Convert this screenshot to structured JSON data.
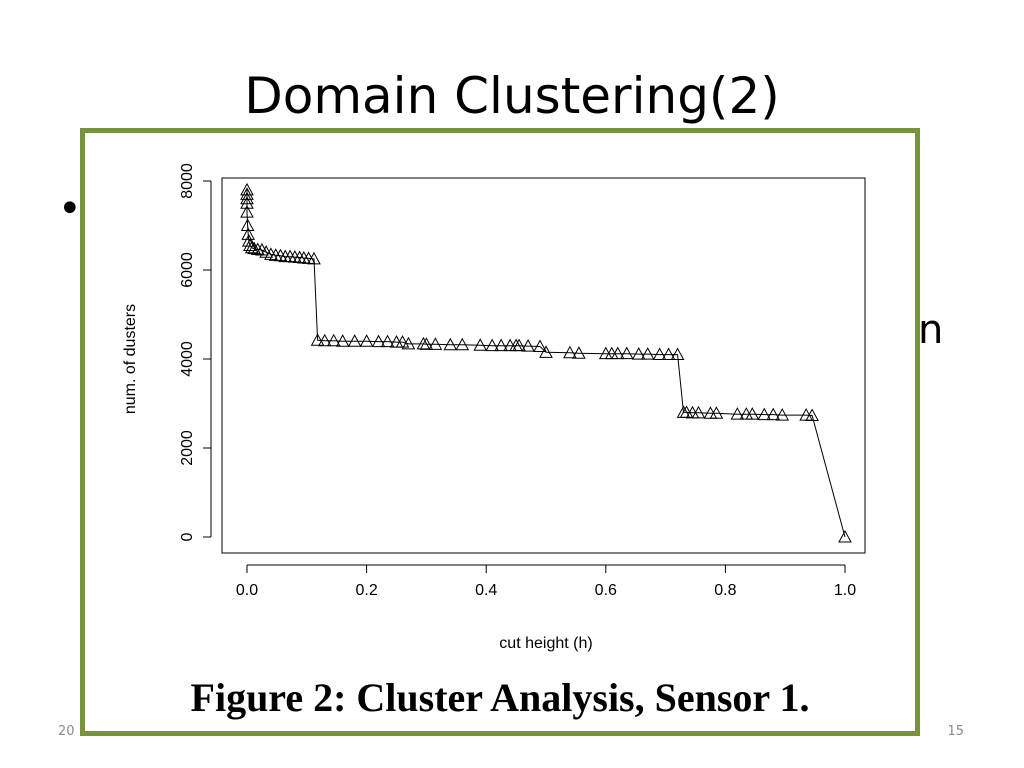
{
  "slide": {
    "title": "Domain Clustering(2)",
    "bullet_char": "•",
    "stray_text": "n",
    "footer_date": "20",
    "slide_number": "15"
  },
  "figure": {
    "caption": "Figure 2: Cluster Analysis, Sensor 1.",
    "border_color": "#77933c"
  },
  "chart_data": {
    "type": "line",
    "title": "",
    "xlabel": "cut height (h)",
    "ylabel": "num. of dusters",
    "xlim": [
      0,
      1
    ],
    "ylim": [
      0,
      8000
    ],
    "xticks": [
      "0.0",
      "0.2",
      "0.4",
      "0.6",
      "0.8",
      "1.0"
    ],
    "yticks": [
      "0",
      "2000",
      "4000",
      "6000",
      "8000"
    ],
    "marker": "triangle",
    "grid": false,
    "series": [
      {
        "x": [
          0.0,
          0.0,
          0.0,
          0.0,
          0.0,
          0.001,
          0.002,
          0.003,
          0.005,
          0.008,
          0.012,
          0.018,
          0.025,
          0.032,
          0.04,
          0.048,
          0.056,
          0.064,
          0.072,
          0.08,
          0.088,
          0.095,
          0.103,
          0.112,
          0.118,
          0.13,
          0.145,
          0.16,
          0.18,
          0.2,
          0.22,
          0.235,
          0.25,
          0.26,
          0.27,
          0.295,
          0.3,
          0.315,
          0.34,
          0.36,
          0.39,
          0.41,
          0.425,
          0.44,
          0.45,
          0.455,
          0.47,
          0.49,
          0.5,
          0.54,
          0.555,
          0.6,
          0.61,
          0.62,
          0.635,
          0.655,
          0.67,
          0.69,
          0.705,
          0.72,
          0.73,
          0.735,
          0.745,
          0.755,
          0.775,
          0.785,
          0.82,
          0.835,
          0.845,
          0.865,
          0.88,
          0.895,
          0.935,
          0.945,
          1.0
        ],
        "y": [
          7800,
          7700,
          7600,
          7500,
          7300,
          7000,
          6800,
          6650,
          6550,
          6500,
          6480,
          6460,
          6450,
          6400,
          6350,
          6330,
          6320,
          6300,
          6300,
          6290,
          6280,
          6270,
          6260,
          6250,
          4420,
          4410,
          4410,
          4400,
          4400,
          4400,
          4390,
          4390,
          4380,
          4380,
          4340,
          4340,
          4330,
          4330,
          4320,
          4320,
          4310,
          4300,
          4300,
          4300,
          4300,
          4300,
          4290,
          4280,
          4150,
          4140,
          4130,
          4120,
          4120,
          4120,
          4120,
          4110,
          4110,
          4100,
          4100,
          4100,
          2800,
          2800,
          2790,
          2790,
          2780,
          2780,
          2760,
          2760,
          2760,
          2750,
          2750,
          2740,
          2740,
          2730,
          0
        ]
      }
    ]
  }
}
